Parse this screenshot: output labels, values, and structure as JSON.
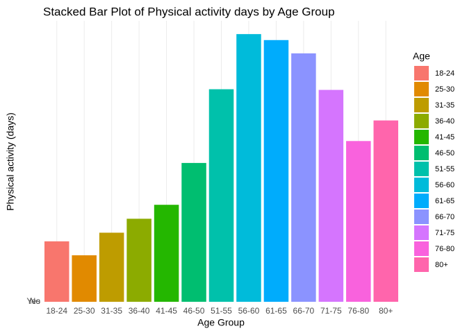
{
  "chart_data": {
    "type": "bar",
    "title": "Stacked Bar Plot of Physical activity days by Age Group",
    "x_label": "Age Group",
    "y_label": "Physical activity (days)",
    "legend_title": "Age",
    "categories": [
      "18-24",
      "25-30",
      "31-35",
      "36-40",
      "41-45",
      "46-50",
      "51-55",
      "56-60",
      "61-65",
      "66-70",
      "71-75",
      "76-80",
      "80+"
    ],
    "values": [
      91,
      70,
      104,
      125,
      146,
      209,
      320,
      403,
      394,
      374,
      319,
      242,
      273
    ],
    "colors": [
      "#F8766D",
      "#E18A00",
      "#BE9C00",
      "#8CAB00",
      "#24B700",
      "#00BE70",
      "#00C1AB",
      "#00BBDA",
      "#00ACFC",
      "#8B93FF",
      "#D575FE",
      "#F962DD",
      "#FF65AC"
    ],
    "ylim": [
      0,
      423
    ],
    "yticks": [
      {
        "value": 0,
        "label": "No"
      },
      {
        "value": 0,
        "label": "Yes"
      }
    ],
    "grid": true,
    "legend": "right"
  }
}
